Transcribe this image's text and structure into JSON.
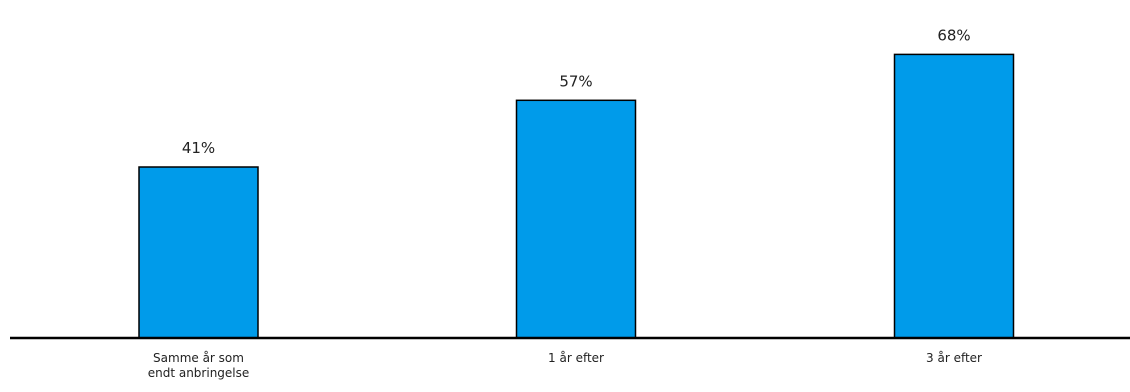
{
  "chart_data": {
    "type": "bar",
    "categories": [
      "Samme år som endt anbringelse",
      "1 år efter",
      "3 år efter"
    ],
    "category_lines": [
      [
        "Samme år som",
        "endt anbringelse"
      ],
      [
        "1 år efter"
      ],
      [
        "3 år efter"
      ]
    ],
    "values": [
      41,
      57,
      68
    ],
    "data_labels": [
      "41%",
      "57%",
      "68%"
    ],
    "value_unit": "%",
    "ylim": [
      0,
      70.5
    ],
    "grid": false,
    "legend": "none",
    "bar_color": "#009BEA",
    "axis_color": "#000000",
    "title": "",
    "xlabel": "",
    "ylabel": ""
  }
}
